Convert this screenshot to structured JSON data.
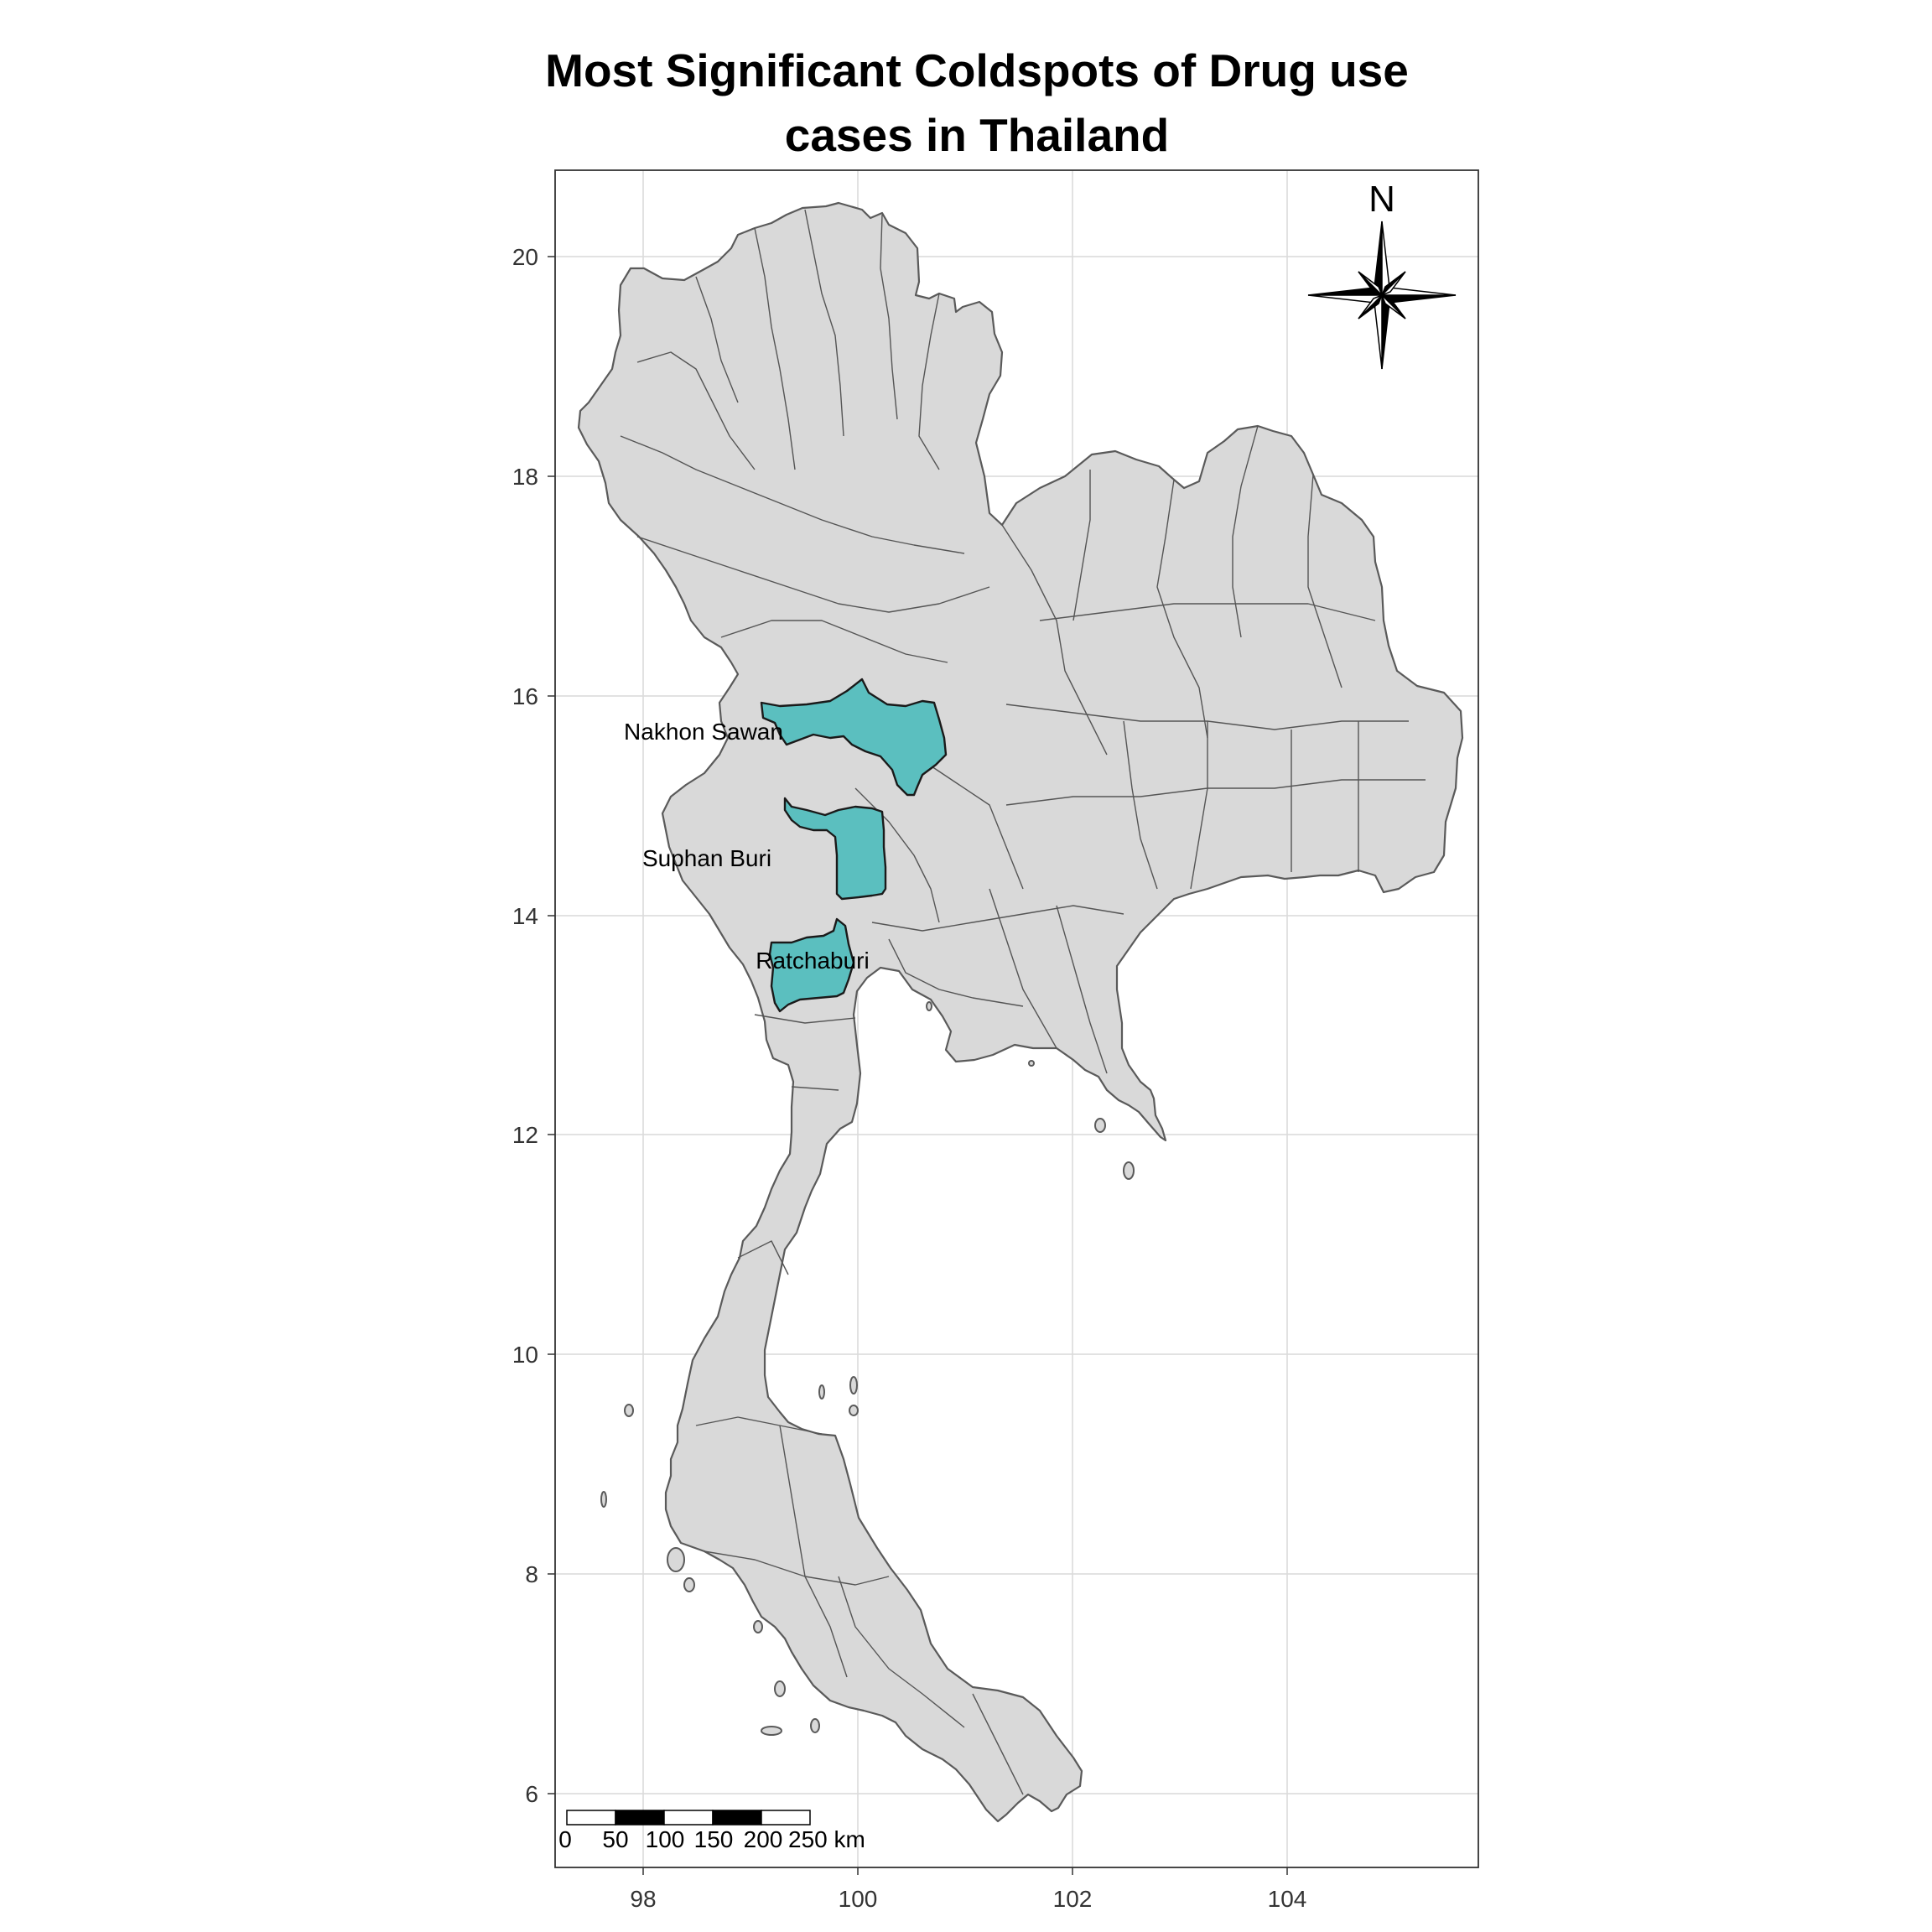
{
  "title_line1": "Most Significant Coldspots of Drug use",
  "title_line2": "cases in Thailand",
  "axes": {
    "x_ticks": [
      "98",
      "100",
      "102",
      "104"
    ],
    "y_ticks": [
      "20",
      "18",
      "16",
      "14",
      "12",
      "10",
      "8",
      "6"
    ],
    "xlim": [
      97.3,
      105.8
    ],
    "ylim": [
      5.3,
      20.8
    ],
    "grid": true
  },
  "colors": {
    "province_fill": "#d9d9d9",
    "province_border": "#5a5a5a",
    "coldspot_fill": "#5bbfbf",
    "background": "#ffffff"
  },
  "coldspots": [
    {
      "name": "Nakhon Sawan"
    },
    {
      "name": "Suphan Buri"
    },
    {
      "name": "Ratchaburi"
    }
  ],
  "north_arrow": {
    "label": "N",
    "icon": "compass-rose-icon"
  },
  "scale_bar": {
    "labels": [
      "0",
      "50",
      "100",
      "150",
      "200",
      "250 km"
    ],
    "unit": "km"
  },
  "chart_data": {
    "type": "map",
    "title": "Most Significant Coldspots of Drug use cases in Thailand",
    "xlabel": "",
    "ylabel": "",
    "xlim": [
      97.3,
      105.8
    ],
    "ylim": [
      5.3,
      20.8
    ],
    "x_ticks": [
      98,
      100,
      102,
      104
    ],
    "y_ticks": [
      6,
      8,
      10,
      12,
      14,
      16,
      18,
      20
    ],
    "highlighted_regions": [
      "Nakhon Sawan",
      "Suphan Buri",
      "Ratchaburi"
    ],
    "grid": true,
    "north_arrow": "top-right",
    "scale_bar": "bottom-left"
  }
}
